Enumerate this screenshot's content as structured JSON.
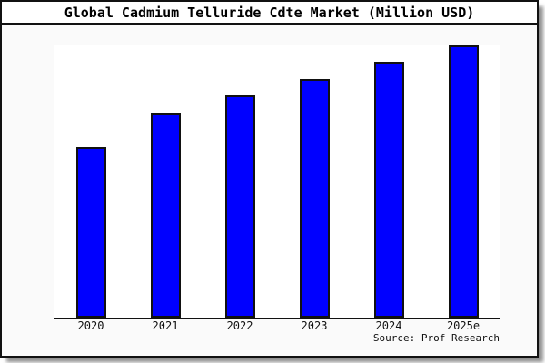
{
  "window": {
    "title": "Global Cadmium Telluride Cdte Market (Million USD)"
  },
  "source_label": "Source: Prof Research",
  "colors": {
    "bar_fill": "#0000ff",
    "bar_border": "#111111",
    "window_bg": "#fafafa",
    "titlebar_bg": "#ffffff",
    "plot_bg": "#ffffff",
    "axis_line": "#111111"
  },
  "chart_data": {
    "type": "bar",
    "title": "Global Cadmium Telluride Cdte Market (Million USD)",
    "categories": [
      "2020",
      "2021",
      "2022",
      "2023",
      "2024",
      "2025e"
    ],
    "values": [
      188,
      225,
      245,
      263,
      282,
      300
    ],
    "value_note": "No y-axis ticks or value labels are shown in the chart; values are relative bar heights (pixels above baseline, max bar = 300 = full plot height)",
    "xlabel": "",
    "ylabel": "",
    "ylim": [
      0,
      300
    ],
    "grid": false,
    "legend": false,
    "bar_color": "#0000ff",
    "source": "Source: Prof Research"
  }
}
